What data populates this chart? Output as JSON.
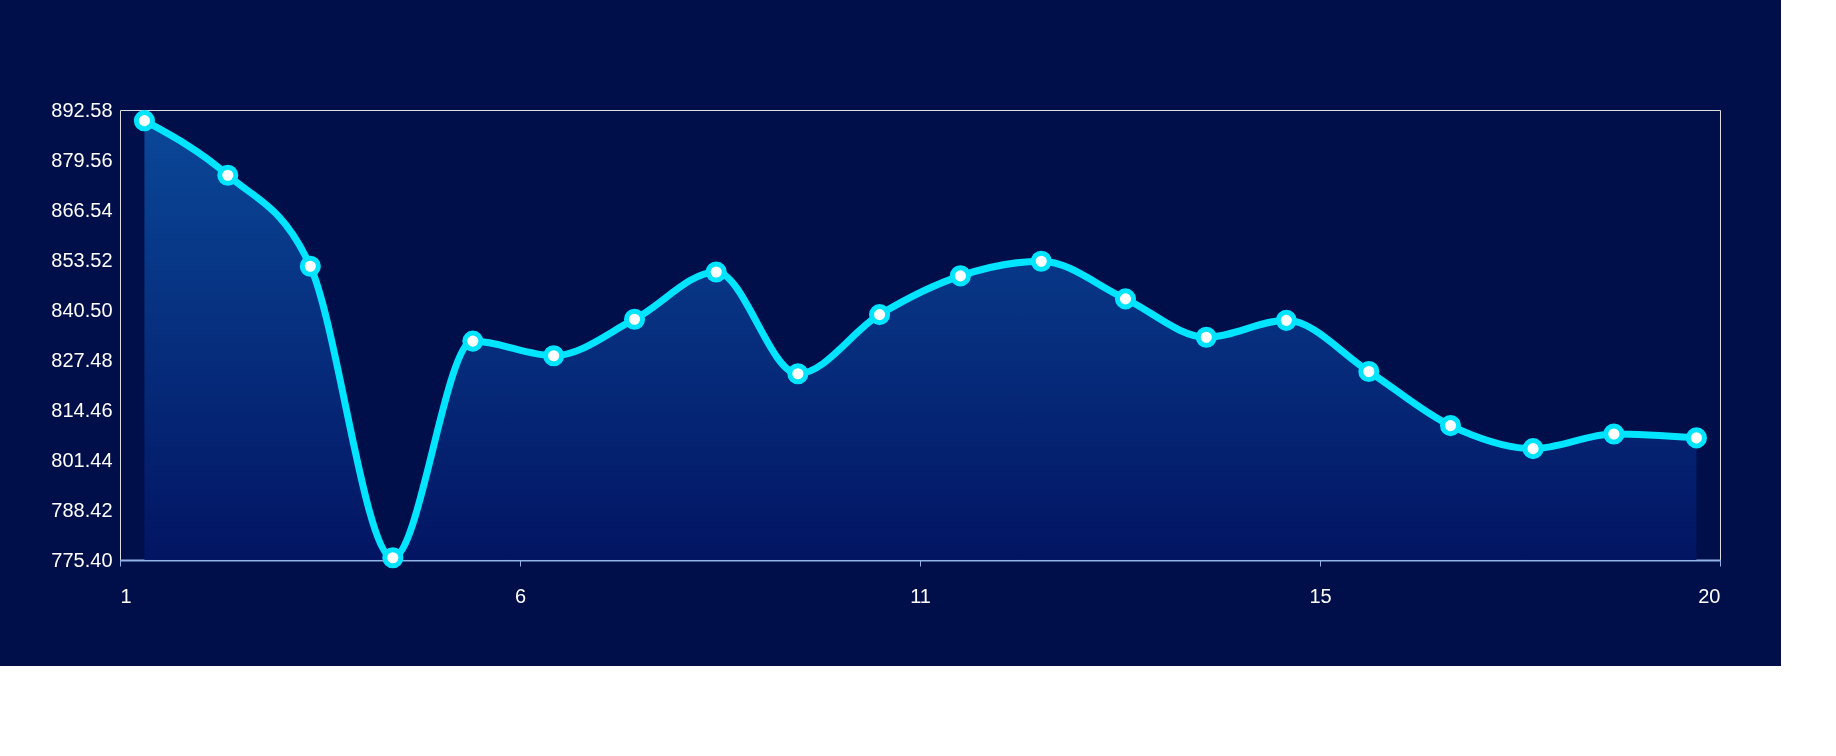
{
  "chart_data": {
    "type": "area",
    "x": [
      1.29,
      2.28,
      3.26,
      4.24,
      5.19,
      6.15,
      7.11,
      8.08,
      9.05,
      10.02,
      10.98,
      11.94,
      12.94,
      13.9,
      14.85,
      15.83,
      16.8,
      17.78,
      18.74,
      19.72
    ],
    "series": [
      {
        "color": "#00e5ff",
        "values": [
          889.8,
          875.6,
          851.9,
          776.0,
          832.4,
          828.6,
          838.1,
          850.4,
          823.9,
          839.3,
          849.4,
          853.2,
          843.4,
          833.4,
          837.8,
          824.5,
          810.4,
          804.4,
          808.2,
          807.2
        ]
      }
    ],
    "xlim": [
      1,
      20
    ],
    "xticks": [
      {
        "value": 1,
        "label": "1"
      },
      {
        "value": 5.75,
        "label": "6"
      },
      {
        "value": 10.5,
        "label": "11"
      },
      {
        "value": 15.25,
        "label": "15"
      },
      {
        "value": 20,
        "label": "20"
      }
    ],
    "ylim": [
      775.4,
      892.58
    ],
    "yticks": [
      {
        "value": 775.4,
        "label": "775.40"
      },
      {
        "value": 788.42,
        "label": "788.42"
      },
      {
        "value": 801.44,
        "label": "801.44"
      },
      {
        "value": 814.46,
        "label": "814.46"
      },
      {
        "value": 827.48,
        "label": "827.48"
      },
      {
        "value": 840.5,
        "label": "840.50"
      },
      {
        "value": 853.52,
        "label": "853.52"
      },
      {
        "value": 866.54,
        "label": "866.54"
      },
      {
        "value": 879.56,
        "label": "879.56"
      },
      {
        "value": 892.58,
        "label": "892.58"
      }
    ],
    "grid": false,
    "marker": "circle",
    "line_style": "solid"
  }
}
